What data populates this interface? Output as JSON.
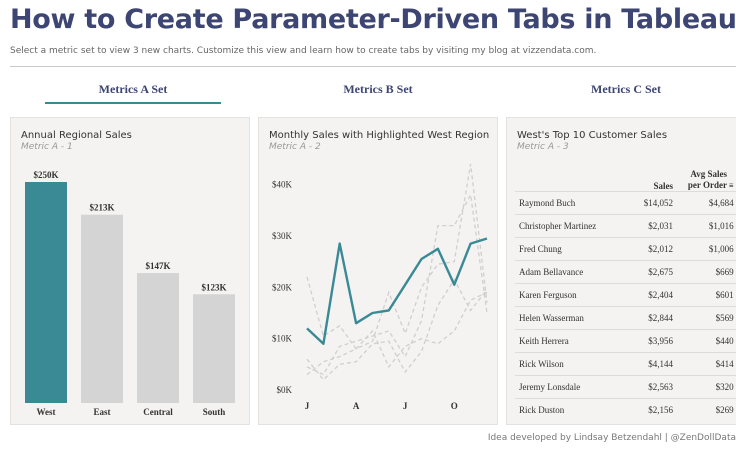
{
  "header": {
    "title": "How to Create Parameter-Driven Tabs in Tableau",
    "subtitle": "Select a metric set to view 3 new charts. Customize this view and learn how to create tabs by visiting my blog at vizzendata.com."
  },
  "tabs": [
    {
      "label": "Metrics A Set",
      "active": true
    },
    {
      "label": "Metrics B Set",
      "active": false
    },
    {
      "label": "Metrics C Set",
      "active": false
    }
  ],
  "panels": {
    "bar": {
      "title": "Annual Regional Sales",
      "subtitle": "Metric A - 1"
    },
    "line": {
      "title": "Monthly Sales with Highlighted West Region",
      "subtitle": "Metric A - 2"
    },
    "table": {
      "title": "West's Top 10 Customer Sales",
      "subtitle": "Metric A - 3"
    }
  },
  "colors": {
    "accent": "#3a8a96",
    "muted": "#d4d4d4",
    "title": "#3d4573"
  },
  "chart_data": [
    {
      "type": "bar",
      "title": "Annual Regional Sales",
      "categories": [
        "West",
        "East",
        "Central",
        "South"
      ],
      "values": [
        250000,
        213000,
        147000,
        123000
      ],
      "labels": [
        "$250K",
        "$213K",
        "$147K",
        "$123K"
      ],
      "highlight": "West",
      "ylim": [
        0,
        250000
      ]
    },
    {
      "type": "line",
      "title": "Monthly Sales with Highlighted West Region",
      "x_tick_labels": [
        "J",
        "A",
        "J",
        "O"
      ],
      "y_ticks": [
        0,
        10000,
        20000,
        30000,
        40000
      ],
      "y_tick_labels": [
        "$0K",
        "$10K",
        "$20K",
        "$30K",
        "$40K"
      ],
      "ylim": [
        0,
        44000
      ],
      "highlight_series": "West",
      "series": [
        {
          "name": "West",
          "values": [
            12000,
            9000,
            28500,
            13000,
            15000,
            15500,
            20500,
            25500,
            27500,
            20500,
            28500,
            29500
          ]
        },
        {
          "values": [
            22000,
            10500,
            12500,
            8000,
            9500,
            19000,
            11000,
            20000,
            24500,
            25000,
            44000,
            17000
          ]
        },
        {
          "values": [
            4500,
            3000,
            8500,
            9500,
            10500,
            11500,
            6500,
            13500,
            32000,
            32000,
            38000,
            15000
          ]
        },
        {
          "values": [
            3000,
            5500,
            6500,
            8000,
            11500,
            4500,
            8500,
            10000,
            9000,
            11500,
            17500,
            19000
          ]
        },
        {
          "values": [
            6000,
            2000,
            5000,
            5500,
            9000,
            9500,
            3500,
            7500,
            16500,
            21500,
            15500,
            19500
          ]
        }
      ]
    },
    {
      "type": "table",
      "title": "West's Top 10 Customer Sales",
      "columns": [
        "",
        "Sales",
        "Avg Sales per Order"
      ],
      "rows": [
        {
          "name": "Raymond Buch",
          "sales": "$14,052",
          "avg": "$4,684"
        },
        {
          "name": "Christopher Martinez",
          "sales": "$2,031",
          "avg": "$1,016"
        },
        {
          "name": "Fred Chung",
          "sales": "$2,012",
          "avg": "$1,006"
        },
        {
          "name": "Adam Bellavance",
          "sales": "$2,675",
          "avg": "$669"
        },
        {
          "name": "Karen Ferguson",
          "sales": "$2,404",
          "avg": "$601"
        },
        {
          "name": "Helen Wasserman",
          "sales": "$2,844",
          "avg": "$569"
        },
        {
          "name": "Keith Herrera",
          "sales": "$3,956",
          "avg": "$440"
        },
        {
          "name": "Rick Wilson",
          "sales": "$4,144",
          "avg": "$414"
        },
        {
          "name": "Jeremy Lonsdale",
          "sales": "$2,563",
          "avg": "$320"
        },
        {
          "name": "Rick Duston",
          "sales": "$2,156",
          "avg": "$269"
        }
      ]
    }
  ],
  "footer": {
    "credit": "Idea developed by Lindsay Betzendahl  |  @ZenDollData"
  }
}
